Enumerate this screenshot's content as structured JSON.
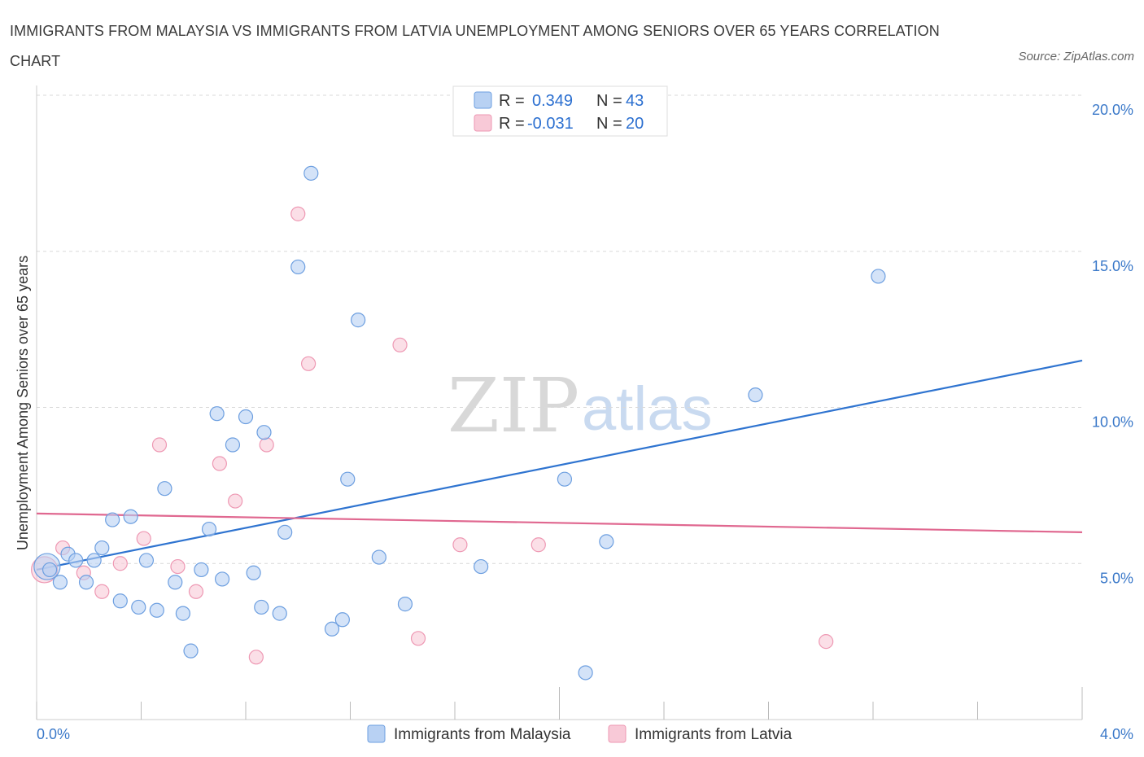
{
  "title": "IMMIGRANTS FROM MALAYSIA VS IMMIGRANTS FROM LATVIA UNEMPLOYMENT AMONG SENIORS OVER 65 YEARS CORRELATION CHART",
  "source": "Source: ZipAtlas.com",
  "colors": {
    "malaysia_fill": "#b8d1f3",
    "malaysia_stroke": "#6d9fe0",
    "malaysia_line": "#2f74d0",
    "latvia_fill": "#f8c9d7",
    "latvia_stroke": "#ee98b3",
    "latvia_line": "#e06890",
    "tick_color": "#3b79c9",
    "grid": "#d9d9d9"
  },
  "legend": {
    "rows": [
      {
        "r_label": "R =",
        "r_value": "0.349",
        "n_label": "N =",
        "n_value": "43"
      },
      {
        "r_label": "R =",
        "r_value": "-0.031",
        "n_label": "N =",
        "n_value": "20"
      }
    ]
  },
  "bottom_legend": [
    "Immigrants from Malaysia",
    "Immigrants from Latvia"
  ],
  "watermark": {
    "zip": "ZIP",
    "atlas": "atlas"
  },
  "chart_data": {
    "type": "scatter",
    "title": "IMMIGRANTS FROM MALAYSIA VS IMMIGRANTS FROM LATVIA UNEMPLOYMENT AMONG SENIORS OVER 65 YEARS CORRELATION CHART",
    "xlabel": "",
    "ylabel": "Unemployment Among Seniors over 65 years",
    "xlim": [
      0,
      4.0
    ],
    "ylim": [
      0,
      20.0
    ],
    "x_tick_labels": [
      {
        "value": 0,
        "label": "0.0%"
      },
      {
        "value": 4.0,
        "label": "4.0%"
      }
    ],
    "y_tick_labels": [
      {
        "value": 5,
        "label": "5.0%"
      },
      {
        "value": 10,
        "label": "10.0%"
      },
      {
        "value": 15,
        "label": "15.0%"
      },
      {
        "value": 20,
        "label": "20.0%"
      }
    ],
    "series": [
      {
        "name": "Immigrants from Malaysia",
        "r": 0.349,
        "n": 43,
        "trend": {
          "x": [
            0.0,
            4.0
          ],
          "y": [
            4.8,
            11.5
          ]
        },
        "points": [
          {
            "x": 0.04,
            "y": 4.9,
            "big": true
          },
          {
            "x": 0.09,
            "y": 4.4
          },
          {
            "x": 0.12,
            "y": 5.3
          },
          {
            "x": 0.15,
            "y": 5.1
          },
          {
            "x": 0.19,
            "y": 4.4
          },
          {
            "x": 0.22,
            "y": 5.1
          },
          {
            "x": 0.25,
            "y": 5.5
          },
          {
            "x": 0.29,
            "y": 6.4
          },
          {
            "x": 0.32,
            "y": 3.8
          },
          {
            "x": 0.36,
            "y": 6.5
          },
          {
            "x": 0.39,
            "y": 3.6
          },
          {
            "x": 0.42,
            "y": 5.1
          },
          {
            "x": 0.46,
            "y": 3.5
          },
          {
            "x": 0.49,
            "y": 7.4
          },
          {
            "x": 0.53,
            "y": 4.4
          },
          {
            "x": 0.56,
            "y": 3.4
          },
          {
            "x": 0.59,
            "y": 2.2
          },
          {
            "x": 0.63,
            "y": 4.8
          },
          {
            "x": 0.66,
            "y": 6.1
          },
          {
            "x": 0.69,
            "y": 9.8
          },
          {
            "x": 0.71,
            "y": 4.5
          },
          {
            "x": 0.75,
            "y": 8.8
          },
          {
            "x": 0.8,
            "y": 9.7
          },
          {
            "x": 0.83,
            "y": 4.7
          },
          {
            "x": 0.86,
            "y": 3.6
          },
          {
            "x": 0.87,
            "y": 9.2
          },
          {
            "x": 0.93,
            "y": 3.4
          },
          {
            "x": 0.95,
            "y": 6.0
          },
          {
            "x": 1.0,
            "y": 14.5
          },
          {
            "x": 1.05,
            "y": 17.5
          },
          {
            "x": 1.13,
            "y": 2.9
          },
          {
            "x": 1.17,
            "y": 3.2
          },
          {
            "x": 1.19,
            "y": 7.7
          },
          {
            "x": 1.23,
            "y": 12.8
          },
          {
            "x": 1.31,
            "y": 5.2
          },
          {
            "x": 1.41,
            "y": 3.7
          },
          {
            "x": 1.7,
            "y": 4.9
          },
          {
            "x": 2.02,
            "y": 7.7
          },
          {
            "x": 2.1,
            "y": 1.5
          },
          {
            "x": 2.18,
            "y": 5.7
          },
          {
            "x": 2.75,
            "y": 10.4
          },
          {
            "x": 3.22,
            "y": 14.2
          },
          {
            "x": 0.05,
            "y": 4.8
          }
        ]
      },
      {
        "name": "Immigrants from Latvia",
        "r": -0.031,
        "n": 20,
        "trend": {
          "x": [
            0.0,
            4.0
          ],
          "y": [
            6.6,
            6.0
          ]
        },
        "points": [
          {
            "x": 0.03,
            "y": 4.8,
            "big": true
          },
          {
            "x": 0.1,
            "y": 5.5
          },
          {
            "x": 0.18,
            "y": 4.7
          },
          {
            "x": 0.25,
            "y": 4.1
          },
          {
            "x": 0.32,
            "y": 5.0
          },
          {
            "x": 0.41,
            "y": 5.8
          },
          {
            "x": 0.47,
            "y": 8.8
          },
          {
            "x": 0.54,
            "y": 4.9
          },
          {
            "x": 0.61,
            "y": 4.1
          },
          {
            "x": 0.7,
            "y": 8.2
          },
          {
            "x": 0.76,
            "y": 7.0
          },
          {
            "x": 0.84,
            "y": 2.0
          },
          {
            "x": 0.88,
            "y": 8.8
          },
          {
            "x": 1.0,
            "y": 16.2
          },
          {
            "x": 1.04,
            "y": 11.4
          },
          {
            "x": 1.39,
            "y": 12.0
          },
          {
            "x": 1.46,
            "y": 2.6
          },
          {
            "x": 1.62,
            "y": 5.6
          },
          {
            "x": 1.92,
            "y": 5.6
          },
          {
            "x": 3.02,
            "y": 2.5
          }
        ]
      }
    ]
  }
}
